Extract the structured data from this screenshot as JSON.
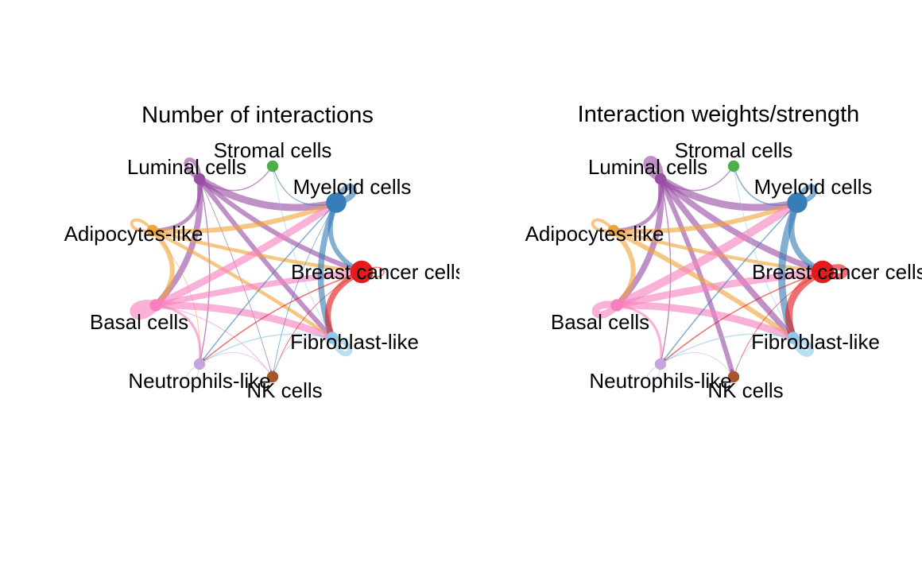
{
  "panels": [
    {
      "title": "Number of interactions",
      "nodes": [
        {
          "key": "stromal",
          "label": "Stromal cells",
          "color": "#4DAF4A",
          "size": 0.3
        },
        {
          "key": "myeloid",
          "label": "Myeloid cells",
          "color": "#377EB8",
          "size": 0.85
        },
        {
          "key": "breast",
          "label": "Breast cancer cells",
          "color": "#E41A1C",
          "size": 1.0
        },
        {
          "key": "fibro",
          "label": "Fibroblast-like",
          "color": "#8FC9EA",
          "size": 0.35
        },
        {
          "key": "nk",
          "label": "NK cells",
          "color": "#A65628",
          "size": 0.3
        },
        {
          "key": "neutro",
          "label": "Neutrophils-like",
          "color": "#C7A5DA",
          "size": 0.3
        },
        {
          "key": "basal",
          "label": "Basal cells",
          "color": "#F781BF",
          "size": 0.35
        },
        {
          "key": "adipo",
          "label": "Adipocytes-like",
          "color": "#F0A33A",
          "size": 0.3
        },
        {
          "key": "luminal",
          "label": "Luminal cells",
          "color": "#984EA3",
          "size": 0.3
        }
      ],
      "edges": [
        {
          "from": "luminal",
          "to": "myeloid",
          "weight": 6
        },
        {
          "from": "luminal",
          "to": "breast",
          "weight": 4
        },
        {
          "from": "luminal",
          "to": "fibro",
          "weight": 4
        },
        {
          "from": "luminal",
          "to": "basal",
          "weight": 5
        },
        {
          "from": "luminal",
          "to": "adipo",
          "weight": 3
        },
        {
          "from": "luminal",
          "to": "neutro",
          "weight": 1
        },
        {
          "from": "luminal",
          "to": "stromal",
          "weight": 1
        },
        {
          "from": "luminal",
          "to": "nk",
          "weight": 0.6
        },
        {
          "from": "adipo",
          "to": "breast",
          "weight": 3
        },
        {
          "from": "adipo",
          "to": "myeloid",
          "weight": 4
        },
        {
          "from": "adipo",
          "to": "fibro",
          "weight": 3
        },
        {
          "from": "adipo",
          "to": "basal",
          "weight": 4
        },
        {
          "from": "adipo",
          "to": "neutro",
          "weight": 0.6
        },
        {
          "from": "basal",
          "to": "breast",
          "weight": 5
        },
        {
          "from": "basal",
          "to": "myeloid",
          "weight": 6
        },
        {
          "from": "basal",
          "to": "fibro",
          "weight": 6
        },
        {
          "from": "basal",
          "to": "neutro",
          "weight": 2
        },
        {
          "from": "basal",
          "to": "nk",
          "weight": 0.6
        },
        {
          "from": "myeloid",
          "to": "breast",
          "weight": 4
        },
        {
          "from": "myeloid",
          "to": "fibro",
          "weight": 5
        },
        {
          "from": "myeloid",
          "to": "stromal",
          "weight": 0.8
        },
        {
          "from": "myeloid",
          "to": "neutro",
          "weight": 1
        },
        {
          "from": "myeloid",
          "to": "nk",
          "weight": 0.6
        },
        {
          "from": "breast",
          "to": "fibro",
          "weight": 5
        },
        {
          "from": "breast",
          "to": "nk",
          "weight": 0.6
        },
        {
          "from": "breast",
          "to": "neutro",
          "weight": 1
        },
        {
          "from": "fibro",
          "to": "neutro",
          "weight": 1
        },
        {
          "from": "fibro",
          "to": "nk",
          "weight": 0.6
        },
        {
          "from": "fibro",
          "to": "stromal",
          "weight": 0.6
        },
        {
          "from": "neutro",
          "to": "nk",
          "weight": 0.5
        }
      ],
      "self_loops": [
        {
          "node": "luminal",
          "weight": 4
        },
        {
          "node": "myeloid",
          "weight": 6
        },
        {
          "node": "adipo",
          "weight": 3
        },
        {
          "node": "basal",
          "weight": 9
        },
        {
          "node": "fibro",
          "weight": 5
        },
        {
          "node": "breast",
          "weight": 1
        },
        {
          "node": "neutro",
          "weight": 0.6
        }
      ]
    },
    {
      "title": "Interaction weights/strength",
      "nodes": [
        {
          "key": "stromal",
          "label": "Stromal cells",
          "color": "#4DAF4A",
          "size": 0.3
        },
        {
          "key": "myeloid",
          "label": "Myeloid cells",
          "color": "#377EB8",
          "size": 0.85
        },
        {
          "key": "breast",
          "label": "Breast cancer cells",
          "color": "#E41A1C",
          "size": 1.0
        },
        {
          "key": "fibro",
          "label": "Fibroblast-like",
          "color": "#8FC9EA",
          "size": 0.35
        },
        {
          "key": "nk",
          "label": "NK cells",
          "color": "#A65628",
          "size": 0.3
        },
        {
          "key": "neutro",
          "label": "Neutrophils-like",
          "color": "#C7A5DA",
          "size": 0.3
        },
        {
          "key": "basal",
          "label": "Basal cells",
          "color": "#F781BF",
          "size": 0.35
        },
        {
          "key": "adipo",
          "label": "Adipocytes-like",
          "color": "#F0A33A",
          "size": 0.3
        },
        {
          "key": "luminal",
          "label": "Luminal cells",
          "color": "#984EA3",
          "size": 0.3
        }
      ],
      "edges": [
        {
          "from": "luminal",
          "to": "myeloid",
          "weight": 6
        },
        {
          "from": "luminal",
          "to": "breast",
          "weight": 5
        },
        {
          "from": "luminal",
          "to": "fibro",
          "weight": 5
        },
        {
          "from": "luminal",
          "to": "basal",
          "weight": 5
        },
        {
          "from": "luminal",
          "to": "adipo",
          "weight": 3
        },
        {
          "from": "luminal",
          "to": "nk",
          "weight": 4
        },
        {
          "from": "luminal",
          "to": "neutro",
          "weight": 1
        },
        {
          "from": "luminal",
          "to": "stromal",
          "weight": 1
        },
        {
          "from": "adipo",
          "to": "breast",
          "weight": 3
        },
        {
          "from": "adipo",
          "to": "myeloid",
          "weight": 4
        },
        {
          "from": "adipo",
          "to": "fibro",
          "weight": 4
        },
        {
          "from": "adipo",
          "to": "basal",
          "weight": 4
        },
        {
          "from": "basal",
          "to": "breast",
          "weight": 6
        },
        {
          "from": "basal",
          "to": "myeloid",
          "weight": 7
        },
        {
          "from": "basal",
          "to": "fibro",
          "weight": 6
        },
        {
          "from": "basal",
          "to": "neutro",
          "weight": 2
        },
        {
          "from": "myeloid",
          "to": "breast",
          "weight": 5
        },
        {
          "from": "myeloid",
          "to": "fibro",
          "weight": 6
        },
        {
          "from": "myeloid",
          "to": "stromal",
          "weight": 1
        },
        {
          "from": "myeloid",
          "to": "neutro",
          "weight": 1
        },
        {
          "from": "breast",
          "to": "fibro",
          "weight": 6
        },
        {
          "from": "breast",
          "to": "nk",
          "weight": 0.6
        },
        {
          "from": "breast",
          "to": "neutro",
          "weight": 1
        },
        {
          "from": "fibro",
          "to": "neutro",
          "weight": 1
        },
        {
          "from": "fibro",
          "to": "nk",
          "weight": 0.6
        },
        {
          "from": "fibro",
          "to": "stromal",
          "weight": 0.6
        },
        {
          "from": "neutro",
          "to": "nk",
          "weight": 0.5
        }
      ],
      "self_loops": [
        {
          "node": "luminal",
          "weight": 7
        },
        {
          "node": "myeloid",
          "weight": 5
        },
        {
          "node": "adipo",
          "weight": 3
        },
        {
          "node": "basal",
          "weight": 7
        },
        {
          "node": "fibro",
          "weight": 6
        },
        {
          "node": "breast",
          "weight": 6
        },
        {
          "node": "neutro",
          "weight": 0.6
        }
      ]
    }
  ]
}
